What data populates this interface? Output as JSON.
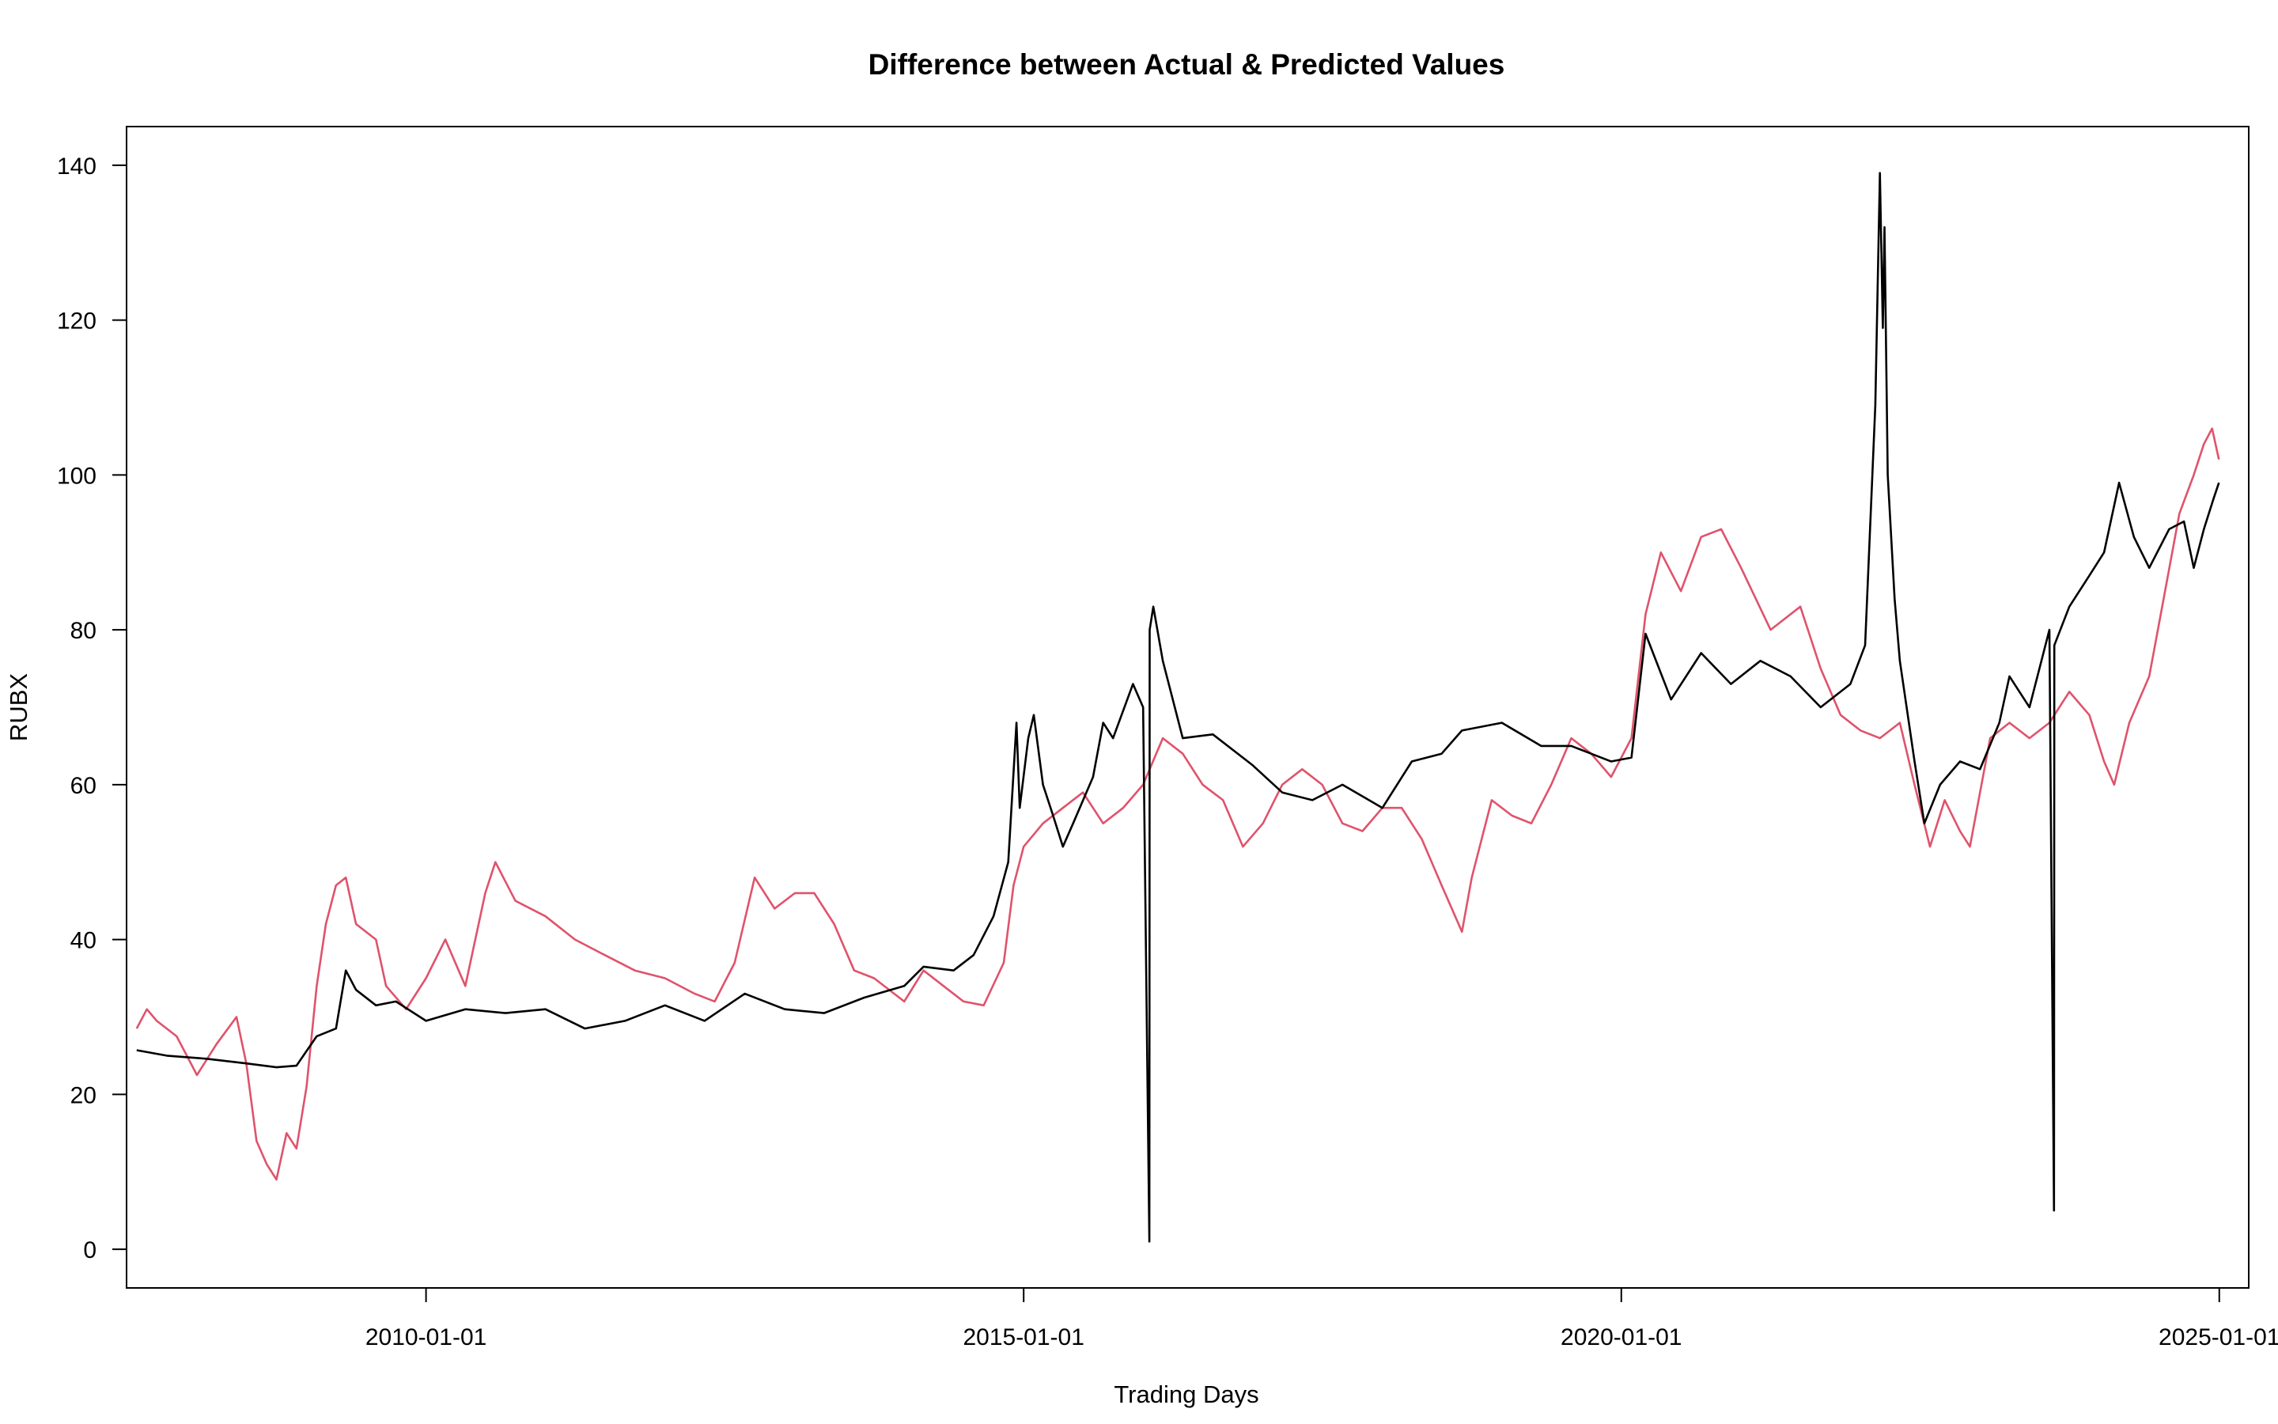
{
  "chart_data": {
    "type": "line",
    "title": "Difference between Actual & Predicted Values",
    "xlabel": "Trading Days",
    "ylabel": "RUBX",
    "x_axis_kind": "date",
    "xlim": [
      "2007-07-01",
      "2025-04-01"
    ],
    "ylim": [
      -5,
      145
    ],
    "x_ticks": [
      "2010-01-01",
      "2015-01-01",
      "2020-01-01",
      "2025-01-01"
    ],
    "y_ticks": [
      0,
      20,
      40,
      60,
      80,
      100,
      120,
      140
    ],
    "grid": false,
    "legend": "none",
    "colors": {
      "actual": "#000000",
      "predicted": "#df536b",
      "frame": "#000000"
    },
    "series": [
      {
        "key": "actual",
        "color": "#000000",
        "points": [
          [
            "2007-08-01",
            25.7
          ],
          [
            "2007-11-01",
            25.0
          ],
          [
            "2008-03-01",
            24.6
          ],
          [
            "2008-07-01",
            24.0
          ],
          [
            "2008-10-01",
            23.5
          ],
          [
            "2008-12-01",
            23.7
          ],
          [
            "2009-02-01",
            27.5
          ],
          [
            "2009-04-01",
            28.5
          ],
          [
            "2009-05-01",
            36.0
          ],
          [
            "2009-06-01",
            33.5
          ],
          [
            "2009-08-01",
            31.5
          ],
          [
            "2009-10-01",
            32.0
          ],
          [
            "2010-01-01",
            29.5
          ],
          [
            "2010-05-01",
            31.0
          ],
          [
            "2010-09-01",
            30.5
          ],
          [
            "2011-01-01",
            31.0
          ],
          [
            "2011-05-01",
            28.5
          ],
          [
            "2011-09-01",
            29.5
          ],
          [
            "2012-01-01",
            31.5
          ],
          [
            "2012-05-01",
            29.5
          ],
          [
            "2012-09-01",
            33.0
          ],
          [
            "2013-01-01",
            31.0
          ],
          [
            "2013-05-01",
            30.5
          ],
          [
            "2013-09-01",
            32.5
          ],
          [
            "2014-01-01",
            34.0
          ],
          [
            "2014-03-01",
            36.5
          ],
          [
            "2014-06-01",
            36.0
          ],
          [
            "2014-08-01",
            38.0
          ],
          [
            "2014-10-01",
            43.0
          ],
          [
            "2014-11-15",
            50.0
          ],
          [
            "2014-12-10",
            68.0
          ],
          [
            "2014-12-20",
            57.0
          ],
          [
            "2015-01-15",
            66.0
          ],
          [
            "2015-02-01",
            69.0
          ],
          [
            "2015-03-01",
            60.0
          ],
          [
            "2015-04-01",
            56.0
          ],
          [
            "2015-05-01",
            52.0
          ],
          [
            "2015-06-01",
            55.0
          ],
          [
            "2015-08-01",
            61.0
          ],
          [
            "2015-09-01",
            68.0
          ],
          [
            "2015-10-01",
            66.0
          ],
          [
            "2015-12-01",
            73.0
          ],
          [
            "2016-01-01",
            70.0
          ],
          [
            "2016-01-20",
            1.0
          ],
          [
            "2016-01-21",
            80.0
          ],
          [
            "2016-02-01",
            83.0
          ],
          [
            "2016-03-01",
            76.0
          ],
          [
            "2016-05-01",
            66.0
          ],
          [
            "2016-08-01",
            66.5
          ],
          [
            "2016-12-01",
            62.5
          ],
          [
            "2017-03-01",
            59.0
          ],
          [
            "2017-06-01",
            58.0
          ],
          [
            "2017-09-01",
            60.0
          ],
          [
            "2018-01-01",
            57.0
          ],
          [
            "2018-04-01",
            63.0
          ],
          [
            "2018-07-01",
            64.0
          ],
          [
            "2018-09-01",
            67.0
          ],
          [
            "2019-01-01",
            68.0
          ],
          [
            "2019-05-01",
            65.0
          ],
          [
            "2019-08-01",
            65.0
          ],
          [
            "2019-12-01",
            63.0
          ],
          [
            "2020-02-01",
            63.5
          ],
          [
            "2020-03-15",
            79.5
          ],
          [
            "2020-06-01",
            71.0
          ],
          [
            "2020-09-01",
            77.0
          ],
          [
            "2020-12-01",
            73.0
          ],
          [
            "2021-03-01",
            76.0
          ],
          [
            "2021-06-01",
            74.0
          ],
          [
            "2021-09-01",
            70.0
          ],
          [
            "2021-12-01",
            73.0
          ],
          [
            "2022-01-15",
            78.0
          ],
          [
            "2022-02-15",
            109.0
          ],
          [
            "2022-03-01",
            139.0
          ],
          [
            "2022-03-10",
            119.0
          ],
          [
            "2022-03-15",
            132.0
          ],
          [
            "2022-03-25",
            100.0
          ],
          [
            "2022-04-15",
            84.0
          ],
          [
            "2022-05-01",
            76.0
          ],
          [
            "2022-06-15",
            63.0
          ],
          [
            "2022-07-15",
            55.0
          ],
          [
            "2022-09-01",
            60.0
          ],
          [
            "2022-11-01",
            63.0
          ],
          [
            "2023-01-01",
            62.0
          ],
          [
            "2023-03-01",
            68.0
          ],
          [
            "2023-04-01",
            74.0
          ],
          [
            "2023-06-01",
            70.0
          ],
          [
            "2023-08-01",
            80.0
          ],
          [
            "2023-08-15",
            5.0
          ],
          [
            "2023-08-16",
            78.0
          ],
          [
            "2023-10-01",
            83.0
          ],
          [
            "2023-12-01",
            87.0
          ],
          [
            "2024-01-15",
            90.0
          ],
          [
            "2024-03-01",
            99.0
          ],
          [
            "2024-04-15",
            92.0
          ],
          [
            "2024-06-01",
            88.0
          ],
          [
            "2024-08-01",
            93.0
          ],
          [
            "2024-09-15",
            94.0
          ],
          [
            "2024-10-15",
            88.0
          ],
          [
            "2024-11-15",
            93.0
          ],
          [
            "2024-12-15",
            97.0
          ],
          [
            "2024-12-31",
            99.0
          ]
        ]
      },
      {
        "key": "predicted",
        "color": "#df536b",
        "points": [
          [
            "2007-08-01",
            28.5
          ],
          [
            "2007-09-01",
            31.0
          ],
          [
            "2007-10-01",
            29.5
          ],
          [
            "2007-12-01",
            27.5
          ],
          [
            "2008-02-01",
            22.5
          ],
          [
            "2008-04-01",
            26.5
          ],
          [
            "2008-06-01",
            30.0
          ],
          [
            "2008-07-01",
            24.0
          ],
          [
            "2008-08-01",
            14.0
          ],
          [
            "2008-09-01",
            11.0
          ],
          [
            "2008-10-01",
            9.0
          ],
          [
            "2008-11-01",
            15.0
          ],
          [
            "2008-12-01",
            13.0
          ],
          [
            "2009-01-01",
            21.0
          ],
          [
            "2009-02-01",
            34.0
          ],
          [
            "2009-03-01",
            42.0
          ],
          [
            "2009-04-01",
            47.0
          ],
          [
            "2009-05-01",
            48.0
          ],
          [
            "2009-06-01",
            42.0
          ],
          [
            "2009-08-01",
            40.0
          ],
          [
            "2009-09-01",
            34.0
          ],
          [
            "2009-11-01",
            31.0
          ],
          [
            "2010-01-01",
            35.0
          ],
          [
            "2010-03-01",
            40.0
          ],
          [
            "2010-05-01",
            34.0
          ],
          [
            "2010-07-01",
            46.0
          ],
          [
            "2010-08-01",
            50.0
          ],
          [
            "2010-10-01",
            45.0
          ],
          [
            "2011-01-01",
            43.0
          ],
          [
            "2011-04-01",
            40.0
          ],
          [
            "2011-07-01",
            38.0
          ],
          [
            "2011-10-01",
            36.0
          ],
          [
            "2012-01-01",
            35.0
          ],
          [
            "2012-04-01",
            33.0
          ],
          [
            "2012-06-01",
            32.0
          ],
          [
            "2012-08-01",
            37.0
          ],
          [
            "2012-10-01",
            48.0
          ],
          [
            "2012-12-01",
            44.0
          ],
          [
            "2013-02-01",
            46.0
          ],
          [
            "2013-04-01",
            46.0
          ],
          [
            "2013-06-01",
            42.0
          ],
          [
            "2013-08-01",
            36.0
          ],
          [
            "2013-10-01",
            35.0
          ],
          [
            "2014-01-01",
            32.0
          ],
          [
            "2014-03-01",
            36.0
          ],
          [
            "2014-05-01",
            34.0
          ],
          [
            "2014-07-01",
            32.0
          ],
          [
            "2014-09-01",
            31.5
          ],
          [
            "2014-11-01",
            37.0
          ],
          [
            "2014-12-01",
            47.0
          ],
          [
            "2015-01-01",
            52.0
          ],
          [
            "2015-03-01",
            55.0
          ],
          [
            "2015-05-01",
            57.0
          ],
          [
            "2015-07-01",
            59.0
          ],
          [
            "2015-09-01",
            55.0
          ],
          [
            "2015-11-01",
            57.0
          ],
          [
            "2016-01-01",
            60.0
          ],
          [
            "2016-03-01",
            66.0
          ],
          [
            "2016-05-01",
            64.0
          ],
          [
            "2016-07-01",
            60.0
          ],
          [
            "2016-09-01",
            58.0
          ],
          [
            "2016-11-01",
            52.0
          ],
          [
            "2017-01-01",
            55.0
          ],
          [
            "2017-03-01",
            60.0
          ],
          [
            "2017-05-01",
            62.0
          ],
          [
            "2017-07-01",
            60.0
          ],
          [
            "2017-09-01",
            55.0
          ],
          [
            "2017-11-01",
            54.0
          ],
          [
            "2018-01-01",
            57.0
          ],
          [
            "2018-03-01",
            57.0
          ],
          [
            "2018-05-01",
            53.0
          ],
          [
            "2018-07-01",
            47.0
          ],
          [
            "2018-09-01",
            41.0
          ],
          [
            "2018-10-01",
            48.0
          ],
          [
            "2018-12-01",
            58.0
          ],
          [
            "2019-02-01",
            56.0
          ],
          [
            "2019-04-01",
            55.0
          ],
          [
            "2019-06-01",
            60.0
          ],
          [
            "2019-08-01",
            66.0
          ],
          [
            "2019-10-01",
            64.0
          ],
          [
            "2019-12-01",
            61.0
          ],
          [
            "2020-02-01",
            66.0
          ],
          [
            "2020-03-15",
            82.0
          ],
          [
            "2020-05-01",
            90.0
          ],
          [
            "2020-07-01",
            85.0
          ],
          [
            "2020-09-01",
            92.0
          ],
          [
            "2020-11-01",
            93.0
          ],
          [
            "2021-01-01",
            88.0
          ],
          [
            "2021-04-01",
            80.0
          ],
          [
            "2021-07-01",
            83.0
          ],
          [
            "2021-09-01",
            75.0
          ],
          [
            "2021-11-01",
            69.0
          ],
          [
            "2022-01-01",
            67.0
          ],
          [
            "2022-03-01",
            66.0
          ],
          [
            "2022-05-01",
            68.0
          ],
          [
            "2022-06-15",
            60.0
          ],
          [
            "2022-08-01",
            52.0
          ],
          [
            "2022-09-15",
            58.0
          ],
          [
            "2022-11-01",
            54.0
          ],
          [
            "2022-12-01",
            52.0
          ],
          [
            "2023-02-01",
            66.0
          ],
          [
            "2023-04-01",
            68.0
          ],
          [
            "2023-06-01",
            66.0
          ],
          [
            "2023-08-01",
            68.0
          ],
          [
            "2023-10-01",
            72.0
          ],
          [
            "2023-12-01",
            69.0
          ],
          [
            "2024-01-15",
            63.0
          ],
          [
            "2024-02-15",
            60.0
          ],
          [
            "2024-04-01",
            68.0
          ],
          [
            "2024-06-01",
            74.0
          ],
          [
            "2024-07-15",
            84.0
          ],
          [
            "2024-09-01",
            95.0
          ],
          [
            "2024-10-15",
            100.0
          ],
          [
            "2024-11-15",
            104.0
          ],
          [
            "2024-12-10",
            106.0
          ],
          [
            "2024-12-31",
            102.0
          ]
        ]
      }
    ]
  }
}
